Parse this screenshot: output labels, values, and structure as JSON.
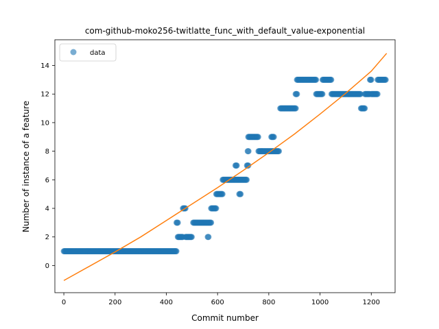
{
  "chart_data": {
    "type": "scatter",
    "title": "com-github-moko256-twitlatte_func_with_default_value-exponential",
    "xlabel": "Commit number",
    "ylabel": "Number of instance of a feature",
    "xlim": [
      -35,
      1293
    ],
    "ylim": [
      -1.9,
      15.8
    ],
    "xticks": [
      0,
      200,
      400,
      600,
      800,
      1000,
      1200
    ],
    "yticks": [
      0,
      2,
      4,
      6,
      8,
      10,
      12,
      14
    ],
    "grid": false,
    "legend": {
      "position": "top-left",
      "entries": [
        "data"
      ]
    },
    "colors": {
      "scatter": "#1f77b4",
      "fit": "#ff7f0e",
      "axes": "#000000"
    },
    "series": [
      {
        "name": "data",
        "kind": "scatter",
        "segments": [
          {
            "x_start": 0,
            "x_end": 440,
            "y": 1
          },
          {
            "x_start": 440,
            "x_end": 445,
            "y": 3
          },
          {
            "x_start": 445,
            "x_end": 465,
            "y": 2
          },
          {
            "x_start": 465,
            "x_end": 475,
            "y": 4
          },
          {
            "x_start": 475,
            "x_end": 500,
            "y": 2
          },
          {
            "x_start": 505,
            "x_end": 575,
            "y": 3
          },
          {
            "x_start": 562,
            "x_end": 565,
            "y": 2
          },
          {
            "x_start": 575,
            "x_end": 595,
            "y": 4
          },
          {
            "x_start": 595,
            "x_end": 620,
            "y": 5
          },
          {
            "x_start": 620,
            "x_end": 715,
            "y": 6
          },
          {
            "x_start": 670,
            "x_end": 675,
            "y": 7
          },
          {
            "x_start": 685,
            "x_end": 692,
            "y": 5
          },
          {
            "x_start": 715,
            "x_end": 720,
            "y": 7
          },
          {
            "x_start": 718,
            "x_end": 722,
            "y": 8
          },
          {
            "x_start": 720,
            "x_end": 760,
            "y": 9
          },
          {
            "x_start": 760,
            "x_end": 840,
            "y": 8
          },
          {
            "x_start": 810,
            "x_end": 820,
            "y": 9
          },
          {
            "x_start": 845,
            "x_end": 905,
            "y": 11
          },
          {
            "x_start": 905,
            "x_end": 910,
            "y": 12
          },
          {
            "x_start": 910,
            "x_end": 985,
            "y": 13
          },
          {
            "x_start": 985,
            "x_end": 1010,
            "y": 12
          },
          {
            "x_start": 1010,
            "x_end": 1045,
            "y": 13
          },
          {
            "x_start": 1045,
            "x_end": 1160,
            "y": 12
          },
          {
            "x_start": 1160,
            "x_end": 1175,
            "y": 11
          },
          {
            "x_start": 1175,
            "x_end": 1195,
            "y": 12
          },
          {
            "x_start": 1195,
            "x_end": 1200,
            "y": 13
          },
          {
            "x_start": 1200,
            "x_end": 1225,
            "y": 12
          },
          {
            "x_start": 1225,
            "x_end": 1258,
            "y": 13
          }
        ]
      },
      {
        "name": "",
        "kind": "line",
        "x": [
          0,
          100,
          200,
          300,
          400,
          500,
          600,
          700,
          800,
          900,
          1000,
          1100,
          1200,
          1260
        ],
        "y": [
          -1.05,
          -0.05,
          0.95,
          2.0,
          3.15,
          4.3,
          5.45,
          6.65,
          7.9,
          9.2,
          10.6,
          12.05,
          13.6,
          14.85
        ]
      }
    ]
  }
}
